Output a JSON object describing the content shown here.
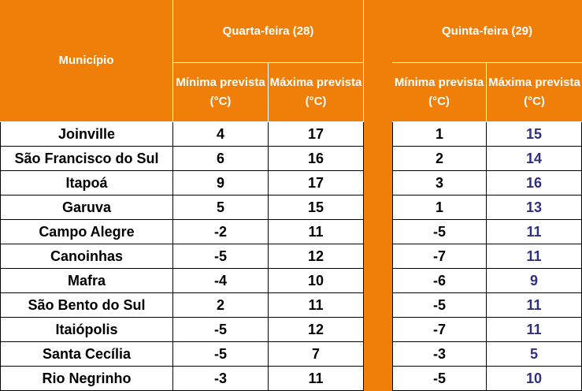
{
  "header": {
    "municipio": "Município",
    "day1": "Quarta-feira (28)",
    "day2": "Quinta-feira (29)",
    "min_label": "Mínima prevista (°C)",
    "max_label": "Máxima prevista (°C)"
  },
  "rows": [
    {
      "municipio": "Joinville",
      "d1_min": "4",
      "d1_max": "17",
      "d2_min": "1",
      "d2_max": "15"
    },
    {
      "municipio": "São Francisco do Sul",
      "d1_min": "6",
      "d1_max": "16",
      "d2_min": "2",
      "d2_max": "14"
    },
    {
      "municipio": "Itapoá",
      "d1_min": "9",
      "d1_max": "17",
      "d2_min": "3",
      "d2_max": "16"
    },
    {
      "municipio": "Garuva",
      "d1_min": "5",
      "d1_max": "15",
      "d2_min": "1",
      "d2_max": "13"
    },
    {
      "municipio": "Campo Alegre",
      "d1_min": "-2",
      "d1_max": "11",
      "d2_min": "-5",
      "d2_max": "11"
    },
    {
      "municipio": "Canoinhas",
      "d1_min": "-5",
      "d1_max": "12",
      "d2_min": "-7",
      "d2_max": "11"
    },
    {
      "municipio": "Mafra",
      "d1_min": "-4",
      "d1_max": "10",
      "d2_min": "-6",
      "d2_max": "9"
    },
    {
      "municipio": "São Bento do Sul",
      "d1_min": "2",
      "d1_max": "11",
      "d2_min": "-5",
      "d2_max": "11"
    },
    {
      "municipio": "Itaiópolis",
      "d1_min": "-5",
      "d1_max": "12",
      "d2_min": "-7",
      "d2_max": "11"
    },
    {
      "municipio": "Santa Cecília",
      "d1_min": "-5",
      "d1_max": "7",
      "d2_min": "-3",
      "d2_max": "5"
    },
    {
      "municipio": "Rio Negrinho",
      "d1_min": "-3",
      "d1_max": "11",
      "d2_min": "-5",
      "d2_max": "10"
    }
  ],
  "colors": {
    "header_bg": "#F07F09",
    "header_text": "#FFFFFF",
    "body_text": "#000000",
    "day2_max_text": "#2E2F7F"
  }
}
